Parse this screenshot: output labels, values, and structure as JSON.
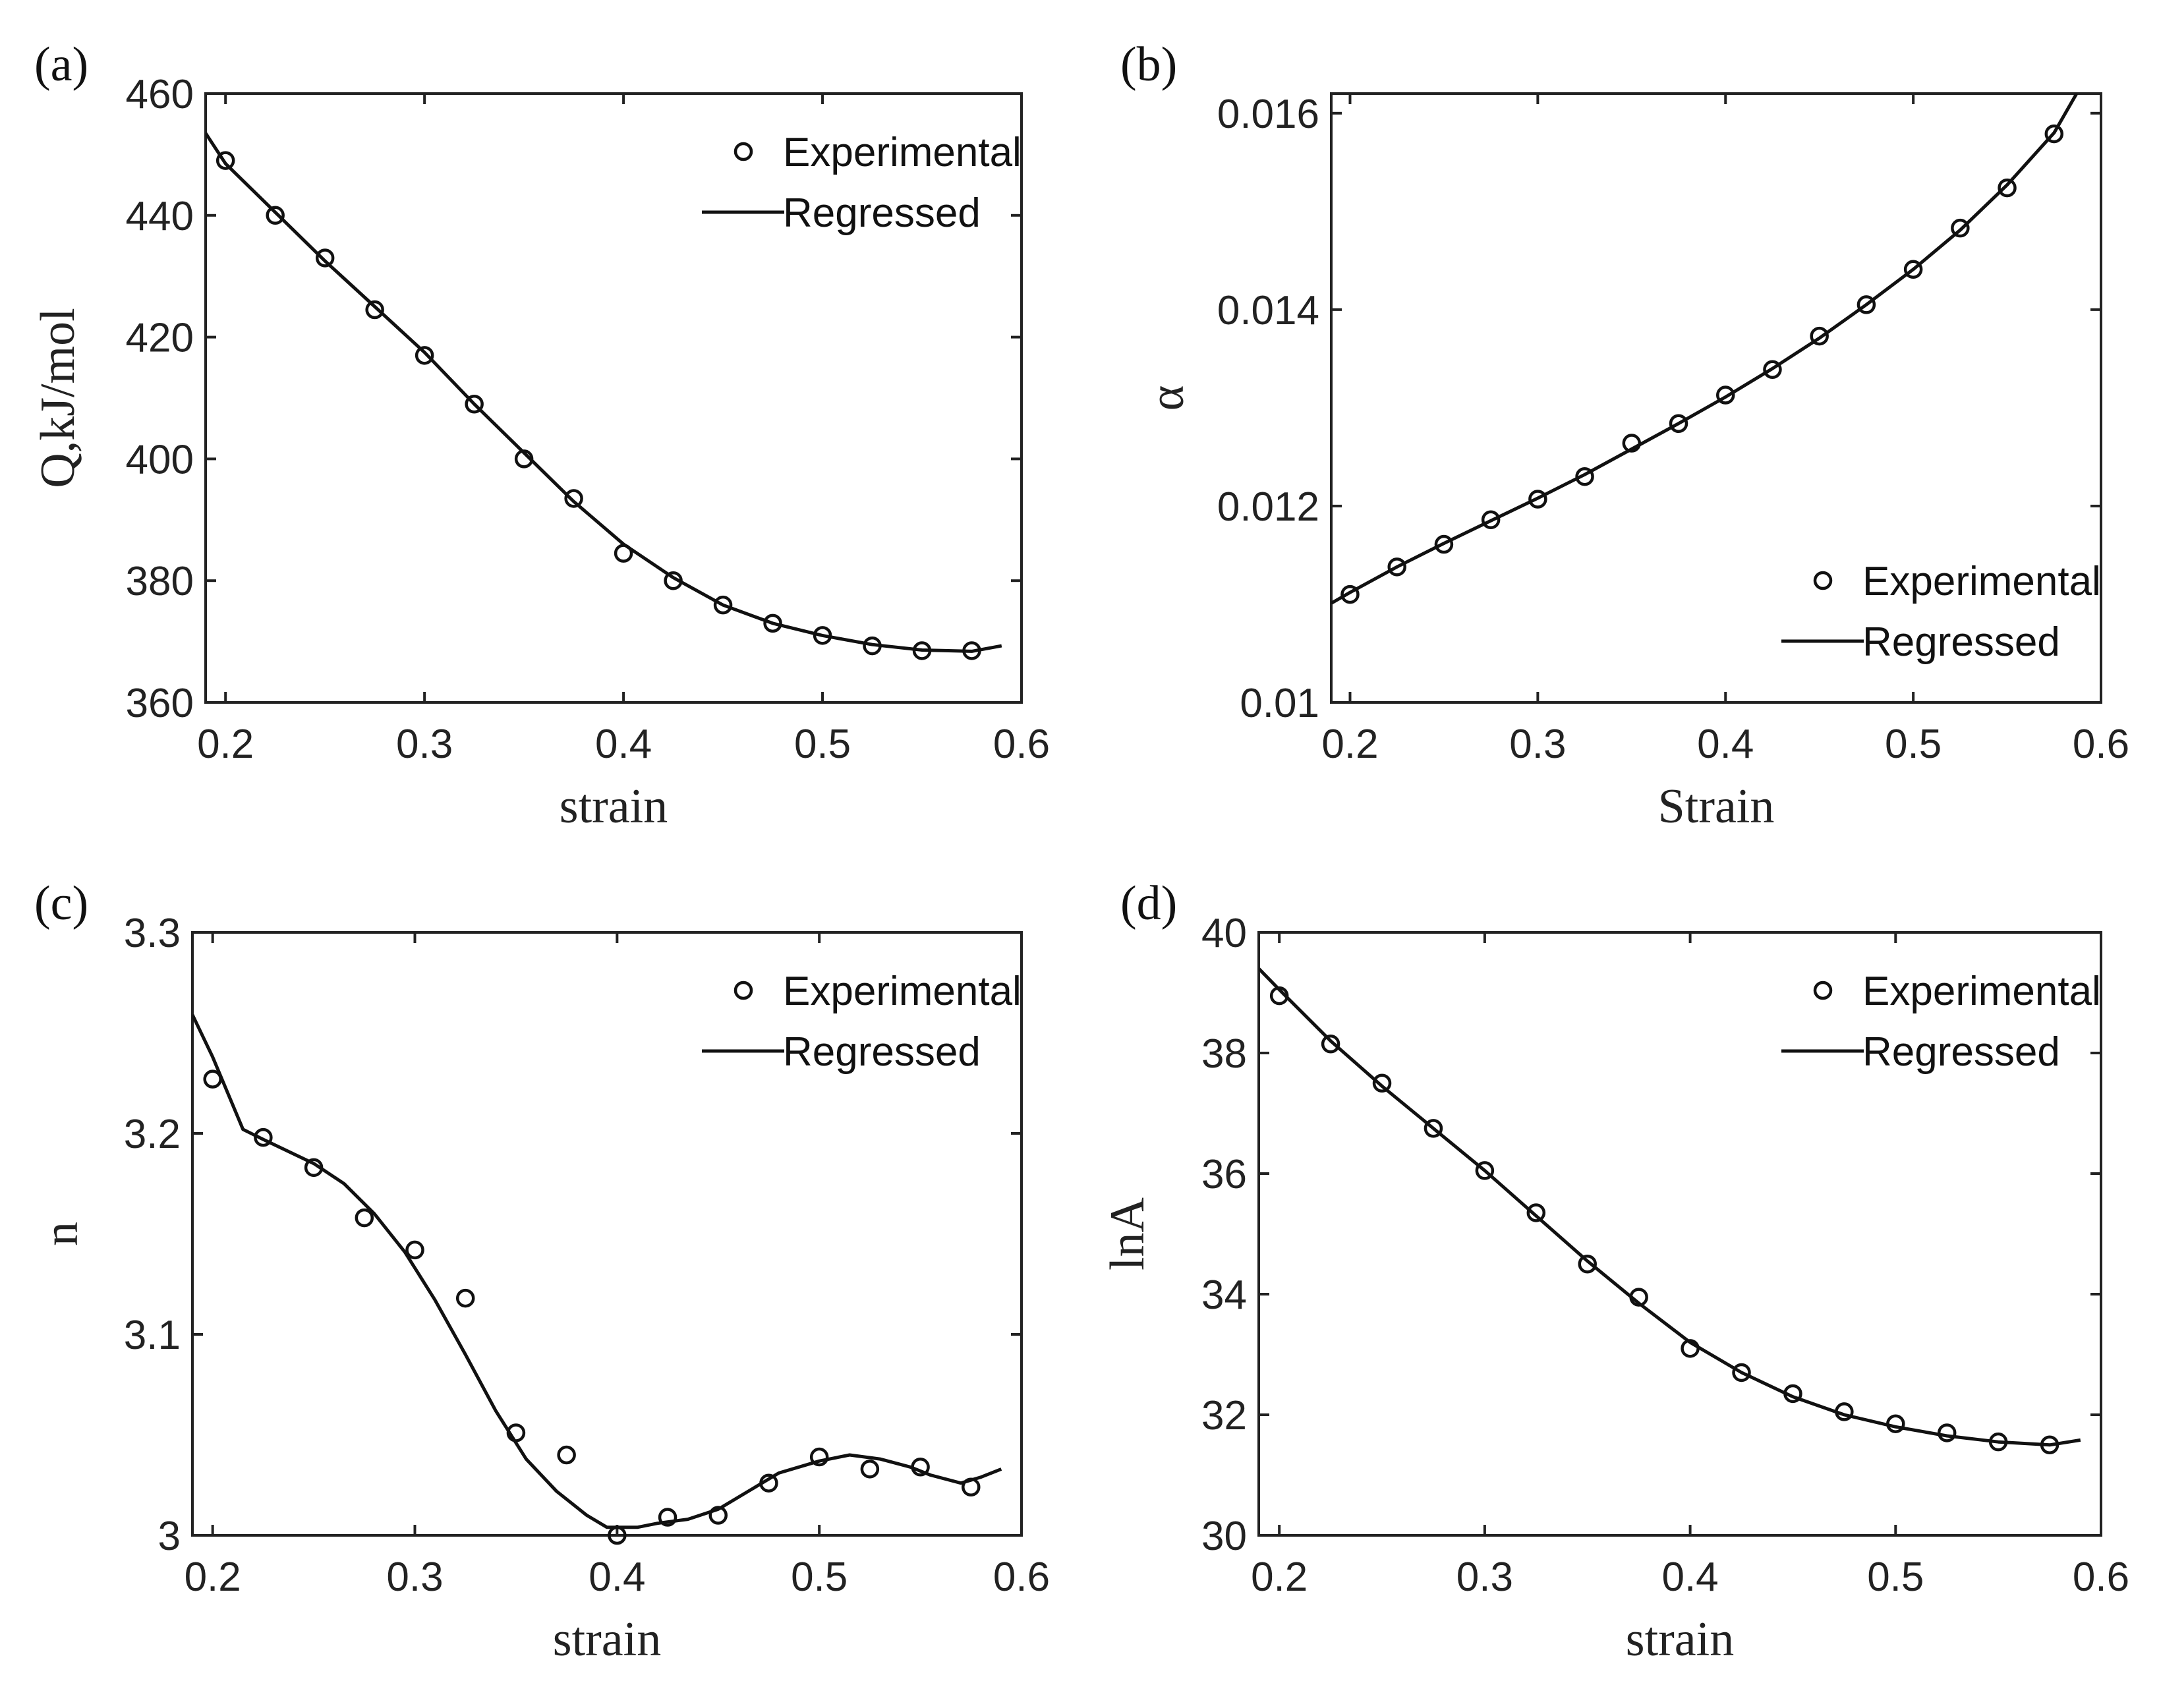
{
  "chart_data": [
    {
      "id": "a",
      "type": "line",
      "panel_label": "(a)",
      "xlabel": "strain",
      "ylabel": "Q,kJ/mol",
      "xlim": [
        0.19,
        0.6
      ],
      "ylim": [
        360,
        460
      ],
      "xticks": [
        0.2,
        0.3,
        0.4,
        0.5,
        0.6
      ],
      "yticks": [
        360,
        380,
        400,
        420,
        440,
        460
      ],
      "xtick_labels": [
        "0.2",
        "0.3",
        "0.4",
        "0.5",
        "0.6"
      ],
      "ytick_labels": [
        "360",
        "380",
        "400",
        "420",
        "440",
        "460"
      ],
      "legend": {
        "position": "top-right",
        "scatter_label": "Experimental",
        "line_label": "Regressed"
      },
      "series": [
        {
          "name": "Experimental",
          "kind": "scatter",
          "x": [
            0.2,
            0.225,
            0.25,
            0.275,
            0.3,
            0.325,
            0.35,
            0.375,
            0.4,
            0.425,
            0.45,
            0.475,
            0.5,
            0.525,
            0.55,
            0.575
          ],
          "y": [
            449,
            440,
            433,
            424.5,
            417,
            409,
            400,
            393.5,
            384.5,
            380,
            376,
            373,
            371,
            369.3,
            368.5,
            368.5
          ]
        },
        {
          "name": "Regressed",
          "kind": "line",
          "x": [
            0.19,
            0.2,
            0.225,
            0.25,
            0.275,
            0.3,
            0.325,
            0.35,
            0.375,
            0.4,
            0.425,
            0.45,
            0.475,
            0.5,
            0.525,
            0.55,
            0.575,
            0.59
          ],
          "y": [
            453.5,
            448.5,
            440.5,
            432.5,
            425,
            417.5,
            409,
            401,
            393,
            386,
            380.5,
            376,
            373,
            371,
            369.5,
            368.6,
            368.4,
            369.3
          ]
        }
      ]
    },
    {
      "id": "b",
      "type": "line",
      "panel_label": "(b)",
      "xlabel": "Strain",
      "ylabel": "α",
      "xlim": [
        0.19,
        0.6
      ],
      "ylim": [
        0.01,
        0.0162
      ],
      "xticks": [
        0.2,
        0.3,
        0.4,
        0.5,
        0.6
      ],
      "yticks": [
        0.01,
        0.012,
        0.014,
        0.016
      ],
      "xtick_labels": [
        "0.2",
        "0.3",
        "0.4",
        "0.5",
        "0.6"
      ],
      "ytick_labels": [
        "0.01",
        "0.012",
        "0.014",
        "0.016"
      ],
      "legend": {
        "position": "bottom-right",
        "scatter_label": "Experimental",
        "line_label": "Regressed"
      },
      "series": [
        {
          "name": "Experimental",
          "kind": "scatter",
          "x": [
            0.2,
            0.225,
            0.25,
            0.275,
            0.3,
            0.325,
            0.35,
            0.375,
            0.4,
            0.425,
            0.45,
            0.475,
            0.5,
            0.525,
            0.55,
            0.575
          ],
          "y": [
            0.0111,
            0.01138,
            0.01161,
            0.01186,
            0.01207,
            0.0123,
            0.01264,
            0.01284,
            0.01313,
            0.01339,
            0.01373,
            0.01405,
            0.01441,
            0.01483,
            0.01524,
            0.01579
          ]
        },
        {
          "name": "Regressed",
          "kind": "line",
          "x": [
            0.19,
            0.2,
            0.225,
            0.25,
            0.275,
            0.3,
            0.325,
            0.35,
            0.375,
            0.4,
            0.425,
            0.45,
            0.475,
            0.5,
            0.525,
            0.55,
            0.575,
            0.587
          ],
          "y": [
            0.01101,
            0.01112,
            0.01138,
            0.01162,
            0.01185,
            0.01208,
            0.01232,
            0.01258,
            0.01284,
            0.01311,
            0.0134,
            0.01371,
            0.01405,
            0.01441,
            0.01481,
            0.01527,
            0.0158,
            0.0162
          ]
        }
      ]
    },
    {
      "id": "c",
      "type": "line",
      "panel_label": "(c)",
      "xlabel": "strain",
      "ylabel": "n",
      "xlim": [
        0.19,
        0.6
      ],
      "ylim": [
        3.0,
        3.3
      ],
      "xticks": [
        0.2,
        0.3,
        0.4,
        0.5,
        0.6
      ],
      "yticks": [
        3.0,
        3.1,
        3.2,
        3.3
      ],
      "xtick_labels": [
        "0.2",
        "0.3",
        "0.4",
        "0.5",
        "0.6"
      ],
      "ytick_labels": [
        "3",
        "3.1",
        "3.2",
        "3.3"
      ],
      "legend": {
        "position": "top-right",
        "scatter_label": "Experimental",
        "line_label": "Regressed"
      },
      "series": [
        {
          "name": "Experimental",
          "kind": "scatter",
          "x": [
            0.2,
            0.225,
            0.25,
            0.275,
            0.3,
            0.325,
            0.35,
            0.375,
            0.4,
            0.425,
            0.45,
            0.475,
            0.5,
            0.525,
            0.55,
            0.575
          ],
          "y": [
            3.227,
            3.198,
            3.183,
            3.158,
            3.142,
            3.118,
            3.051,
            3.04,
            3.0,
            3.009,
            3.01,
            3.026,
            3.039,
            3.033,
            3.034,
            3.024
          ]
        },
        {
          "name": "Regressed",
          "kind": "line",
          "x": [
            0.19,
            0.2,
            0.215,
            0.225,
            0.25,
            0.265,
            0.28,
            0.295,
            0.31,
            0.325,
            0.34,
            0.355,
            0.37,
            0.385,
            0.395,
            0.41,
            0.42,
            0.435,
            0.45,
            0.465,
            0.48,
            0.5,
            0.515,
            0.53,
            0.545,
            0.555,
            0.57,
            0.58,
            0.59
          ],
          "y": [
            3.259,
            3.238,
            3.202,
            3.197,
            3.185,
            3.175,
            3.16,
            3.141,
            3.117,
            3.09,
            3.062,
            3.038,
            3.022,
            3.01,
            3.004,
            3.004,
            3.006,
            3.008,
            3.013,
            3.022,
            3.031,
            3.037,
            3.04,
            3.038,
            3.034,
            3.03,
            3.026,
            3.029,
            3.033
          ]
        }
      ]
    },
    {
      "id": "d",
      "type": "line",
      "panel_label": "(d)",
      "xlabel": "strain",
      "ylabel": "lnA",
      "xlim": [
        0.19,
        0.6
      ],
      "ylim": [
        30,
        40
      ],
      "xticks": [
        0.2,
        0.3,
        0.4,
        0.5,
        0.6
      ],
      "yticks": [
        30,
        32,
        34,
        36,
        38,
        40
      ],
      "xtick_labels": [
        "0.2",
        "0.3",
        "0.4",
        "0.5",
        "0.6"
      ],
      "ytick_labels": [
        "30",
        "32",
        "34",
        "36",
        "38",
        "40"
      ],
      "legend": {
        "position": "top-right",
        "scatter_label": "Experimental",
        "line_label": "Regressed"
      },
      "series": [
        {
          "name": "Experimental",
          "kind": "scatter",
          "x": [
            0.2,
            0.225,
            0.25,
            0.275,
            0.3,
            0.325,
            0.35,
            0.375,
            0.4,
            0.425,
            0.45,
            0.475,
            0.5,
            0.525,
            0.55,
            0.575
          ],
          "y": [
            38.95,
            38.15,
            37.5,
            36.75,
            36.05,
            35.35,
            34.5,
            33.95,
            33.1,
            32.7,
            32.35,
            32.05,
            31.85,
            31.7,
            31.55,
            31.5
          ]
        },
        {
          "name": "Regressed",
          "kind": "line",
          "x": [
            0.19,
            0.2,
            0.225,
            0.25,
            0.275,
            0.3,
            0.325,
            0.35,
            0.375,
            0.4,
            0.425,
            0.45,
            0.475,
            0.5,
            0.525,
            0.55,
            0.575,
            0.59
          ],
          "y": [
            39.4,
            39.05,
            38.2,
            37.45,
            36.75,
            36.05,
            35.3,
            34.55,
            33.85,
            33.2,
            32.7,
            32.3,
            32.0,
            31.8,
            31.65,
            31.55,
            31.5,
            31.58
          ]
        }
      ]
    }
  ]
}
